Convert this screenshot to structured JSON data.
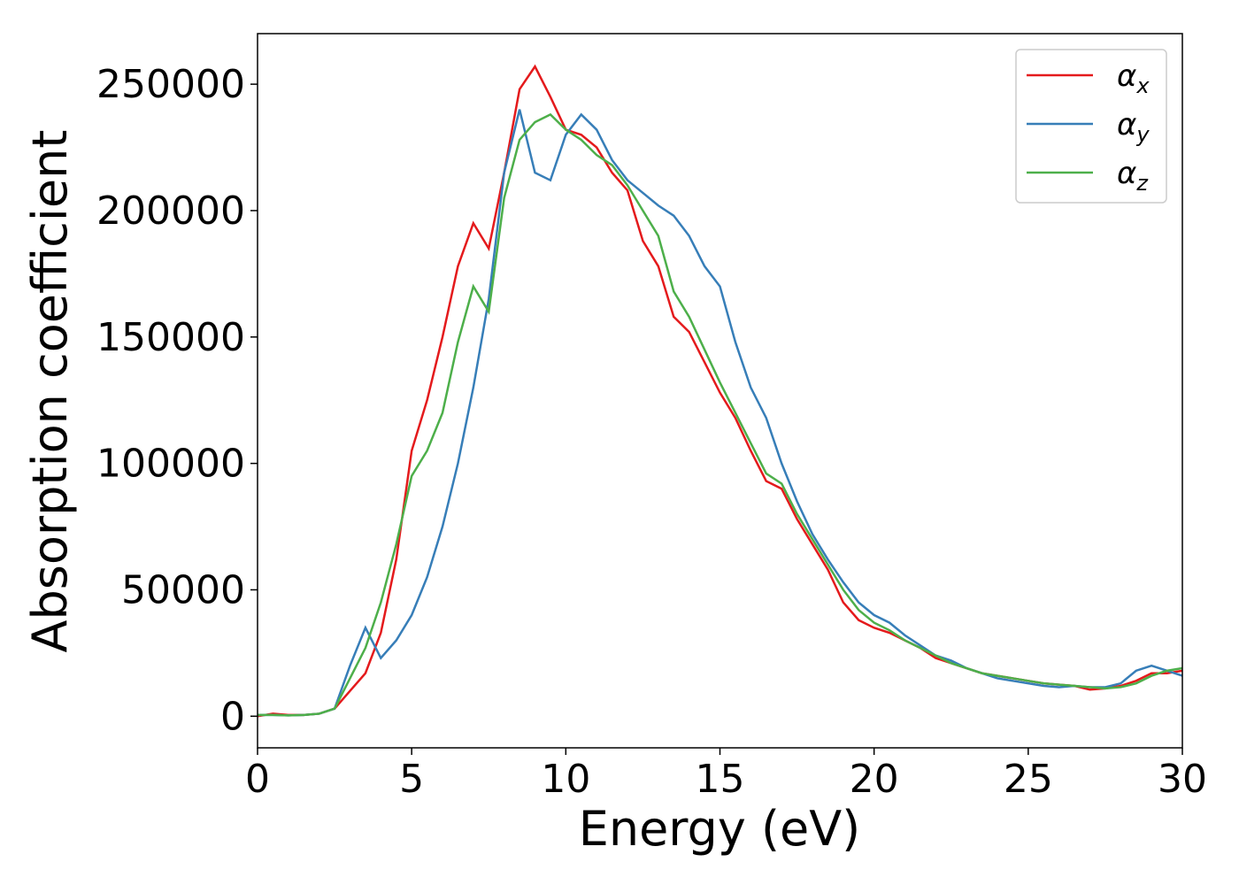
{
  "chart_data": {
    "type": "line",
    "xlabel": "Energy (eV)",
    "ylabel": "Absorption coefficient",
    "x": [
      0,
      0.5,
      1,
      1.5,
      2,
      2.5,
      3,
      3.5,
      4,
      4.5,
      5,
      5.5,
      6,
      6.5,
      7,
      7.5,
      8,
      8.5,
      9,
      9.5,
      10,
      10.5,
      11,
      11.5,
      12,
      12.5,
      13,
      13.5,
      14,
      14.5,
      15,
      15.5,
      16,
      16.5,
      17,
      17.5,
      18,
      18.5,
      19,
      19.5,
      20,
      20.5,
      21,
      21.5,
      22,
      22.5,
      23,
      23.5,
      24,
      24.5,
      25,
      25.5,
      26,
      26.5,
      27,
      27.5,
      28,
      28.5,
      29,
      29.5,
      30
    ],
    "series": [
      {
        "name": "αx",
        "color": "#e41a1c",
        "values": [
          0,
          1000,
          500,
          500,
          1000,
          3000,
          10000,
          17000,
          33000,
          62000,
          105000,
          125000,
          150000,
          178000,
          195000,
          185000,
          215000,
          248000,
          257000,
          245000,
          232000,
          230000,
          225000,
          215000,
          208000,
          188000,
          178000,
          158000,
          152000,
          140000,
          128000,
          118000,
          105000,
          93000,
          90000,
          78000,
          68000,
          58000,
          45000,
          38000,
          35000,
          33000,
          30000,
          27000,
          23000,
          21000,
          19000,
          17000,
          16000,
          15000,
          14000,
          13000,
          12500,
          12000,
          10500,
          11000,
          12000,
          14000,
          17000,
          17000,
          18000
        ]
      },
      {
        "name": "αy",
        "color": "#377eb8",
        "values": [
          500,
          500,
          300,
          500,
          1000,
          3000,
          20000,
          35000,
          23000,
          30000,
          40000,
          55000,
          75000,
          100000,
          130000,
          165000,
          215000,
          240000,
          215000,
          212000,
          230000,
          238000,
          232000,
          220000,
          212000,
          207000,
          202000,
          198000,
          190000,
          178000,
          170000,
          148000,
          130000,
          118000,
          100000,
          85000,
          72000,
          62000,
          53000,
          45000,
          40000,
          37000,
          32000,
          28000,
          24000,
          22000,
          19000,
          17000,
          15000,
          14000,
          13000,
          12000,
          11500,
          12000,
          11500,
          11500,
          13000,
          18000,
          20000,
          18000,
          16000
        ]
      },
      {
        "name": "αz",
        "color": "#4daf4a",
        "values": [
          500,
          500,
          300,
          500,
          1000,
          3000,
          15000,
          27000,
          45000,
          68000,
          95000,
          105000,
          120000,
          148000,
          170000,
          160000,
          205000,
          228000,
          235000,
          238000,
          232000,
          228000,
          222000,
          218000,
          210000,
          200000,
          190000,
          168000,
          158000,
          145000,
          132000,
          120000,
          108000,
          96000,
          92000,
          80000,
          70000,
          60000,
          50000,
          42000,
          37000,
          34000,
          30000,
          27000,
          24000,
          21000,
          19000,
          17000,
          16000,
          15000,
          14000,
          13000,
          12500,
          12000,
          11500,
          11000,
          11500,
          13000,
          16000,
          18000,
          19000
        ]
      }
    ],
    "xlim": [
      0,
      30
    ],
    "xticks": [
      0,
      5,
      10,
      15,
      20,
      25,
      30
    ],
    "ylim": [
      -12500,
      270000
    ],
    "yticks": [
      0,
      50000,
      100000,
      150000,
      200000,
      250000
    ],
    "grid": false,
    "legend": "upper right"
  }
}
